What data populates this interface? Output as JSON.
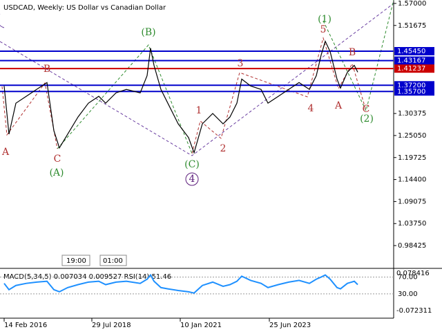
{
  "chart_data": {
    "type": "line",
    "title": "USDCAD, Weekly:  US Dollar vs Canadian Dollar",
    "x": [
      3,
      10,
      20,
      35,
      50,
      65,
      75,
      83,
      95,
      110,
      125,
      140,
      150,
      165,
      180,
      200,
      210,
      215,
      220,
      230,
      240,
      255,
      270,
      278,
      290,
      305,
      320,
      330,
      340,
      347,
      360,
      375,
      385,
      400,
      415,
      430,
      445,
      455,
      462,
      468,
      475,
      485,
      490,
      500,
      510,
      515
    ],
    "values": [
      1.3703,
      1.2538,
      1.3287,
      1.3454,
      1.362,
      1.3786,
      1.2622,
      1.2206,
      1.2538,
      1.2954,
      1.3287,
      1.3454,
      1.3287,
      1.3537,
      1.362,
      1.3537,
      1.3953,
      1.4618,
      1.4202,
      1.362,
      1.3287,
      1.2788,
      1.2455,
      1.2089,
      1.2788,
      1.3038,
      1.2788,
      1.2954,
      1.3287,
      1.387,
      1.3703,
      1.362,
      1.3287,
      1.3454,
      1.362,
      1.3786,
      1.362,
      1.3953,
      1.4452,
      1.4785,
      1.4535,
      1.387,
      1.3653,
      1.4036,
      1.4202,
      1.4036
    ],
    "color": "#000000",
    "xlim": [
      -3,
      567
    ],
    "xticks": [
      {
        "value": 3,
        "label": "14 Feb 2016"
      },
      {
        "value": 130,
        "label": "29 Jul 2018"
      },
      {
        "value": 258,
        "label": "10 Jan 2021"
      },
      {
        "value": 387,
        "label": "25 Jun 2023"
      }
    ],
    "ylim": [
      0.9626,
      1.5783
    ],
    "yticks": [
      {
        "value": 1.57,
        "label": "1.57000"
      },
      1.51675,
      1.30375,
      {
        "value": 1.2505,
        "label": "1.25050"
      },
      1.19725,
      {
        "value": 1.144,
        "label": "1.14400"
      },
      1.09075,
      {
        "value": 1.0375,
        "label": "1.03750"
      },
      0.98425
    ],
    "levels": [
      {
        "value": 1.4545,
        "label": "1.45450",
        "color": "#0000cc"
      },
      {
        "value": 1.43167,
        "label": "1.43167",
        "color": "#0000cc"
      },
      {
        "value": 1.41237,
        "label": "1.41237",
        "color": "#cc0000"
      },
      {
        "value": 1.372,
        "label": "1.37200",
        "color": "#0000cc"
      },
      {
        "value": 1.357,
        "label": "1.35700",
        "color": "#0000cc"
      }
    ],
    "annotations": [
      {
        "text": "A",
        "color": "#b03030"
      },
      {
        "text": "B",
        "color": "#b03030"
      },
      {
        "text": "C",
        "color": "#b03030"
      },
      {
        "text": "(A)",
        "color": "#2e8b2e"
      },
      {
        "text": "(B)",
        "color": "#2e8b2e"
      },
      {
        "text": "(C)",
        "color": "#2e8b2e"
      },
      {
        "text": "4",
        "color": "#5a1a7a"
      },
      {
        "text": "1",
        "color": "#b03030"
      },
      {
        "text": "2",
        "color": "#b03030"
      },
      {
        "text": "3",
        "color": "#b03030"
      },
      {
        "text": "4",
        "color": "#b03030"
      },
      {
        "text": "(1)",
        "color": "#2e8b2e"
      },
      {
        "text": "5",
        "color": "#b03030"
      },
      {
        "text": "A",
        "color": "#b03030"
      },
      {
        "text": "B",
        "color": "#b03030"
      },
      {
        "text": "C",
        "color": "#b03030"
      },
      {
        "text": "(2)",
        "color": "#2e8b2e"
      }
    ],
    "time_labels": [
      "19:00",
      "01:00"
    ],
    "indicator": {
      "label": "MACD(5,34,5) 0.007034 0.009527 RSI(14) 51.46",
      "macd_labels": [
        "0.078416",
        "-0.072311"
      ],
      "ylim": [
        -27.8,
        90.7
      ],
      "yticks": [
        {
          "value": 70,
          "label": "70.00"
        },
        {
          "value": 30,
          "label": "30.00"
        }
      ],
      "color": "#1e90ff",
      "values": [
        55,
        40,
        50,
        55,
        58,
        60,
        40,
        35,
        45,
        52,
        58,
        60,
        52,
        58,
        60,
        55,
        65,
        75,
        60,
        45,
        42,
        38,
        35,
        32,
        50,
        58,
        48,
        52,
        60,
        72,
        62,
        55,
        45,
        52,
        58,
        62,
        55,
        65,
        70,
        75,
        65,
        45,
        42,
        55,
        60,
        52
      ]
    }
  }
}
